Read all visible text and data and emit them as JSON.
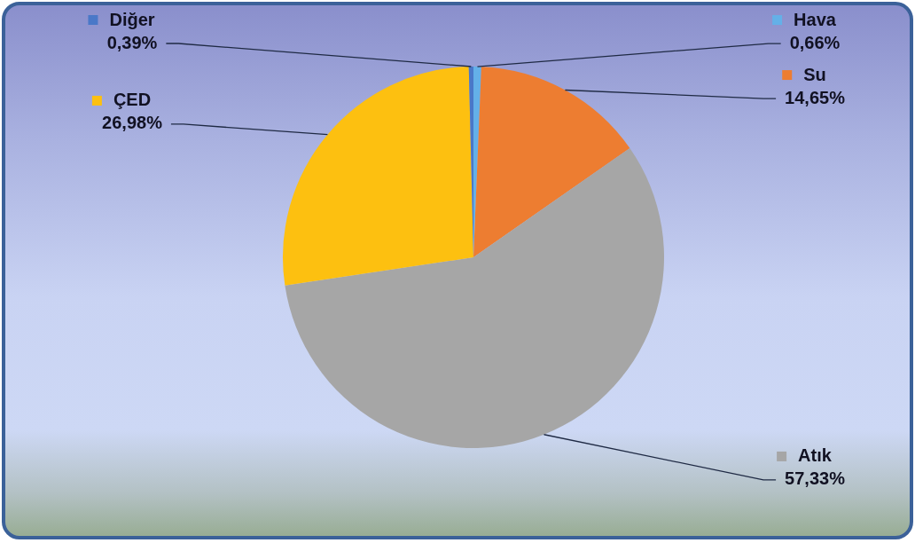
{
  "chart_data": {
    "type": "pie",
    "categories": [
      "Hava",
      "Su",
      "Atık",
      "ÇED",
      "Diğer"
    ],
    "values": [
      0.66,
      14.65,
      57.33,
      26.98,
      0.39
    ],
    "colors": [
      "#64b0e8",
      "#ed7d31",
      "#a6a6a6",
      "#fdc010",
      "#4a78c8"
    ],
    "value_labels": [
      "0,66%",
      "14,65%",
      "57,33%",
      "26,98%",
      "0,39%"
    ],
    "legend": true
  }
}
